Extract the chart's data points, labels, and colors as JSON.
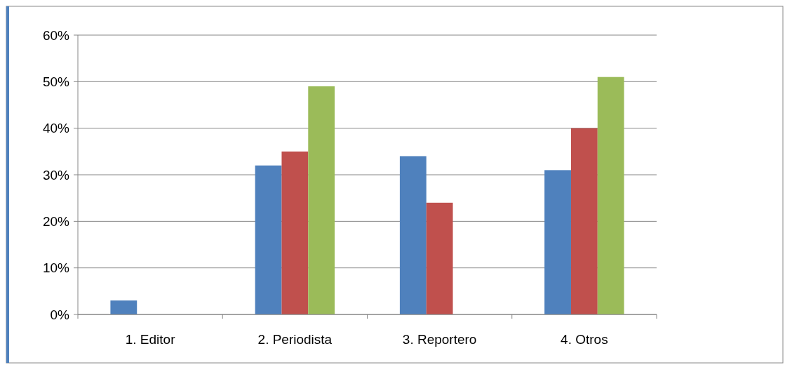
{
  "chart_data": {
    "type": "bar",
    "categories": [
      "1. Editor",
      "2. Periodista",
      "3. Reportero",
      "4. Otros"
    ],
    "series": [
      {
        "color": "#4f81bd",
        "values": [
          3,
          32,
          34,
          31
        ]
      },
      {
        "color": "#c0504d",
        "values": [
          0,
          35,
          24,
          40
        ]
      },
      {
        "color": "#9bbb59",
        "values": [
          0,
          49,
          0,
          51
        ]
      }
    ],
    "ylim": [
      0,
      60
    ],
    "yticks": [
      {
        "value": 0,
        "label": "0%"
      },
      {
        "value": 10,
        "label": "10%"
      },
      {
        "value": 20,
        "label": "20%"
      },
      {
        "value": 30,
        "label": "30%"
      },
      {
        "value": 40,
        "label": "40%"
      },
      {
        "value": 50,
        "label": "50%"
      },
      {
        "value": 60,
        "label": "60%"
      }
    ],
    "grid": "y"
  }
}
